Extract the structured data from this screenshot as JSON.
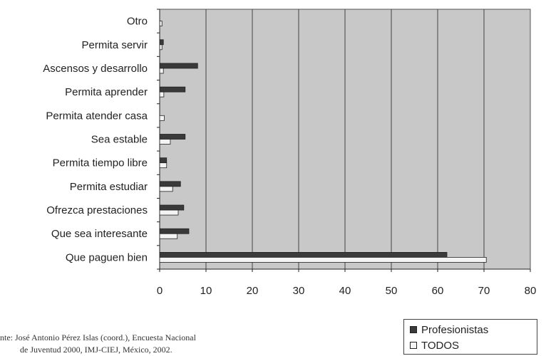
{
  "chart_data": {
    "type": "bar",
    "orientation": "horizontal",
    "categories": [
      "Otro",
      "Permita servir",
      "Ascensos y desarrollo",
      "Permita aprender",
      "Permita atender casa",
      "Sea estable",
      "Permita tiempo libre",
      "Permita estudiar",
      "Ofrezca prestaciones",
      "Que sea interesante",
      "Que paguen bien"
    ],
    "series": [
      {
        "name": "Profesionistas",
        "values": [
          0,
          0.8,
          8.2,
          5.5,
          0,
          5.5,
          1.5,
          4.5,
          5.2,
          6.3,
          62.0
        ],
        "color": "#3a3a3a"
      },
      {
        "name": "TODOS",
        "values": [
          0.5,
          0.5,
          0.8,
          0.9,
          1.0,
          2.3,
          1.5,
          2.8,
          4.0,
          3.8,
          70.5
        ],
        "color": "#f4f4f4"
      }
    ],
    "xlim": [
      0,
      80
    ],
    "xticks": [
      0,
      10,
      20,
      30,
      40,
      50,
      60,
      70,
      80
    ],
    "grid": true,
    "legend_position": "bottom-right",
    "plot_background": "#c8c8c8"
  },
  "source": {
    "line1": "nte: José Antonio Pérez Islas (coord.), Encuesta Nacional",
    "line2": "de Juventud 2000, IMJ-CIEJ, México, 2002."
  }
}
